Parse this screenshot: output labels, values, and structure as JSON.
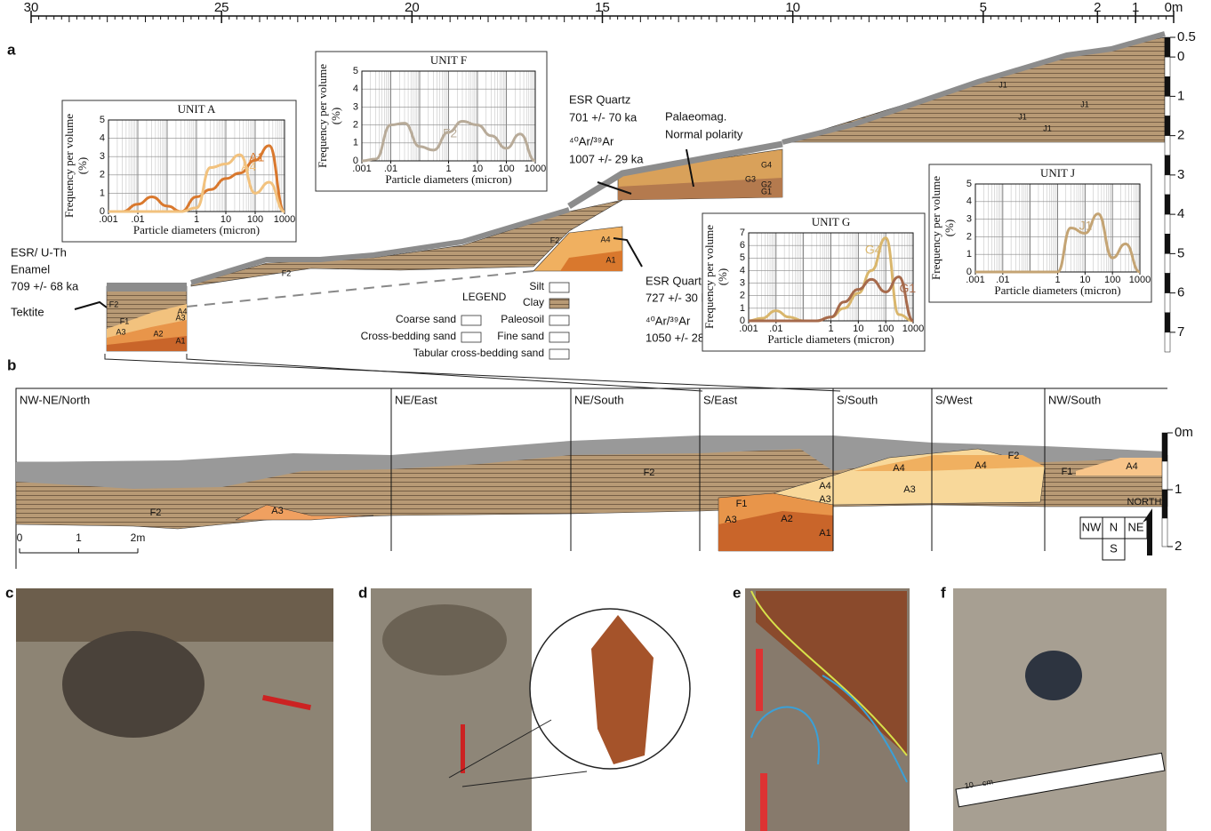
{
  "panel_labels": {
    "a": "a",
    "b": "b",
    "c": "c",
    "d": "d",
    "e": "e",
    "f": "f"
  },
  "top_scale": {
    "xlim": [
      30,
      0
    ],
    "xticks": [
      30,
      25,
      20,
      15,
      10,
      5,
      2,
      1,
      {
        "value": 0,
        "label": "0m"
      }
    ]
  },
  "depth_scale_a": {
    "ylim": [
      -0.5,
      7.5
    ],
    "yticks": [
      {
        "value": -0.5,
        "label": "0.5"
      },
      0,
      1,
      2,
      3,
      4,
      5,
      6,
      7
    ]
  },
  "depth_scale_b": {
    "ylim": [
      0,
      2
    ],
    "yticks": [
      {
        "value": 0,
        "label": "0m"
      },
      1,
      2
    ]
  },
  "dating": {
    "esr_enamel": [
      "ESR/ U-Th",
      "Enamel",
      "709 +/- 68 ka"
    ],
    "tektite": "Tektite",
    "esr_quartz_upper": [
      "ESR Quartz",
      "701 +/- 70 ka"
    ],
    "ar_upper": [
      "⁴⁰Ar/³⁹Ar",
      "1007 +/- 29 ka"
    ],
    "palaeomag": [
      "Palaeomag.",
      "Normal polarity"
    ],
    "esr_quartz_lower": [
      "ESR Quartz",
      "727 +/- 30 ka"
    ],
    "ar_lower": [
      "⁴⁰Ar/³⁹Ar",
      "1050 +/- 28 ka"
    ]
  },
  "legend": {
    "title": "LEGEND",
    "items": [
      "Silt",
      "Clay",
      "Coarse sand",
      "Paleosoil",
      "Cross-bedding sand",
      "Fine sand",
      "Tabular cross-bedding sand"
    ]
  },
  "layers_a": [
    "F2",
    "F2",
    "F2",
    "A4",
    "A1",
    "F1",
    "A4",
    "A3",
    "A3",
    "A2",
    "A1",
    "G4",
    "G3",
    "G2",
    "G1",
    "J1",
    "J1",
    "J1",
    "J1"
  ],
  "panel_b": {
    "sections": [
      "NW-NE/North",
      "NE/East",
      "NE/South",
      "S/East",
      "S/South",
      "S/West",
      "NW/South"
    ],
    "layers": [
      "F2",
      "F2",
      "A3",
      "F1",
      "A3",
      "A2",
      "A1",
      "A4",
      "A3",
      "A4",
      "A3",
      "A4",
      "F2",
      "F1",
      "A4"
    ],
    "scale": {
      "xlim": [
        0,
        2
      ],
      "xticks": [
        0,
        1,
        {
          "value": 2,
          "label": "2m"
        }
      ]
    },
    "compass": {
      "cells": [
        "NW",
        "N",
        "NE",
        "S"
      ],
      "north": "NORTH"
    }
  },
  "photo_scale": [
    "10",
    "cm"
  ],
  "chart_data": [
    {
      "type": "line",
      "title": "UNIT A",
      "x_label": "Particle diameters (micron)",
      "y_label": [
        "Frequency per volume",
        "(%)"
      ],
      "log_x": true,
      "x": [
        0.001,
        0.003,
        0.01,
        0.03,
        0.1,
        0.3,
        1,
        3,
        10,
        30,
        100,
        300,
        1000
      ],
      "series": [
        {
          "name": "A1",
          "color": "#d9782d",
          "values": [
            0,
            0,
            0.4,
            0.8,
            0.3,
            0,
            0.8,
            1.2,
            1.8,
            2.1,
            2.8,
            3.6,
            0
          ]
        },
        {
          "name": "A4",
          "color": "#f2c27e",
          "values": [
            0,
            0,
            0,
            0,
            0,
            0,
            0.2,
            2.4,
            2.6,
            3.1,
            1.0,
            1.6,
            0
          ]
        }
      ],
      "xlim": [
        0.001,
        1000
      ],
      "xticks": [
        {
          "value": 0.001,
          "label": ".001"
        },
        {
          "value": 0.01,
          "label": ".01"
        },
        1,
        10,
        100,
        1000
      ],
      "ylim": [
        0,
        5
      ],
      "yticks": [
        0,
        1,
        2,
        3,
        4,
        5
      ]
    },
    {
      "type": "line",
      "title": "UNIT F",
      "x_label": "Particle diameters (micron)",
      "y_label": [
        "Frequency per volume",
        "(%)"
      ],
      "log_x": true,
      "x": [
        0.001,
        0.003,
        0.01,
        0.03,
        0.1,
        0.3,
        1,
        3,
        10,
        30,
        100,
        300,
        1000
      ],
      "series": [
        {
          "name": "F2",
          "color": "#b8ab99",
          "values": [
            0,
            0.1,
            2.0,
            2.1,
            0.8,
            0.6,
            1.6,
            2.2,
            2.0,
            1.4,
            0.7,
            1.5,
            0
          ]
        }
      ],
      "xlim": [
        0.001,
        1000
      ],
      "xticks": [
        {
          "value": 0.001,
          "label": ".001"
        },
        {
          "value": 0.01,
          "label": ".01"
        },
        1,
        10,
        100,
        1000
      ],
      "ylim": [
        0,
        5
      ],
      "yticks": [
        0,
        1,
        2,
        3,
        4,
        5
      ]
    },
    {
      "type": "line",
      "title": "UNIT G",
      "x_label": "Particle diameters (micron)",
      "y_label": [
        "Frequency per volume",
        "(%)"
      ],
      "log_x": true,
      "x": [
        0.001,
        0.003,
        0.01,
        0.03,
        0.1,
        0.3,
        1,
        3,
        10,
        30,
        100,
        300,
        1000
      ],
      "series": [
        {
          "name": "G4",
          "color": "#d9b66c",
          "values": [
            0,
            0.2,
            0.8,
            0.3,
            0,
            0,
            0.3,
            1.0,
            2.2,
            4.0,
            6.6,
            0.5,
            0
          ]
        },
        {
          "name": "G1",
          "color": "#a66a4c",
          "values": [
            0,
            0,
            0,
            0,
            0,
            0,
            0.3,
            1.5,
            2.5,
            3.3,
            2.3,
            3.5,
            0
          ]
        }
      ],
      "xlim": [
        0.001,
        1000
      ],
      "xticks": [
        {
          "value": 0.001,
          "label": ".001"
        },
        {
          "value": 0.01,
          "label": ".01"
        },
        1,
        10,
        100,
        1000
      ],
      "ylim": [
        0,
        7
      ],
      "yticks": [
        0,
        1,
        2,
        3,
        4,
        5,
        6,
        7
      ]
    },
    {
      "type": "line",
      "title": "UNIT J",
      "x_label": "Particle diameters (micron)",
      "y_label": [
        "Frequency per volume",
        "(%)"
      ],
      "log_x": true,
      "x": [
        0.001,
        0.003,
        0.01,
        0.03,
        0.1,
        0.3,
        1,
        3,
        10,
        30,
        100,
        300,
        1000
      ],
      "series": [
        {
          "name": "J1",
          "color": "#c4a474",
          "values": [
            0,
            0,
            0,
            0,
            0,
            0,
            0,
            2.5,
            2.2,
            3.3,
            0.8,
            1.6,
            0
          ]
        }
      ],
      "xlim": [
        0.001,
        1000
      ],
      "xticks": [
        {
          "value": 0.001,
          "label": ".001"
        },
        {
          "value": 0.01,
          "label": ".01"
        },
        1,
        10,
        100,
        1000
      ],
      "ylim": [
        0,
        5
      ],
      "yticks": [
        0,
        1,
        2,
        3,
        4,
        5
      ]
    }
  ]
}
